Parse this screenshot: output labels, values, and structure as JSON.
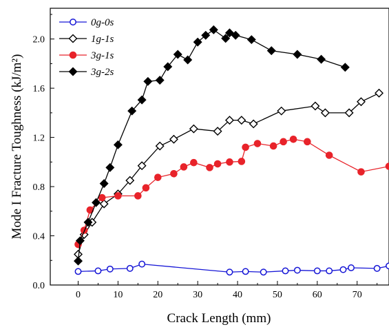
{
  "chart_data": {
    "type": "line",
    "xlabel": "Crack Length (mm)",
    "ylabel": "Mode I Fracture Toughness (kJ/m²)",
    "xlim": [
      -7,
      78
    ],
    "ylim": [
      0,
      2.25
    ],
    "xticks": [
      0,
      10,
      20,
      30,
      40,
      50,
      60,
      70
    ],
    "yticks": [
      0.0,
      0.4,
      0.8,
      1.2,
      1.6,
      2.0
    ],
    "ytick_labels": [
      "0.0",
      "0.4",
      "0.8",
      "1.2",
      "1.6",
      "2.0"
    ],
    "grid": false,
    "legend_position": "top-left",
    "series": [
      {
        "name": "0g-0s",
        "color": "#1515d6",
        "marker": "circle-open",
        "points": [
          [
            0,
            0.11
          ],
          [
            5,
            0.115
          ],
          [
            8,
            0.13
          ],
          [
            13,
            0.135
          ],
          [
            16,
            0.17
          ],
          [
            38,
            0.105
          ],
          [
            42,
            0.11
          ],
          [
            46.5,
            0.105
          ],
          [
            52,
            0.115
          ],
          [
            55,
            0.12
          ],
          [
            60,
            0.115
          ],
          [
            63,
            0.115
          ],
          [
            66.5,
            0.125
          ],
          [
            68.5,
            0.14
          ],
          [
            75,
            0.135
          ],
          [
            78,
            0.155
          ]
        ]
      },
      {
        "name": "1g-1s",
        "color": "#000000",
        "marker": "diamond-open",
        "points": [
          [
            0,
            0.25
          ],
          [
            1.5,
            0.41
          ],
          [
            3.5,
            0.51
          ],
          [
            6.5,
            0.66
          ],
          [
            10,
            0.74
          ],
          [
            13,
            0.85
          ],
          [
            16,
            0.97
          ],
          [
            20.5,
            1.13
          ],
          [
            24,
            1.185
          ],
          [
            29,
            1.27
          ],
          [
            35,
            1.25
          ],
          [
            38,
            1.34
          ],
          [
            41,
            1.34
          ],
          [
            44,
            1.31
          ],
          [
            51,
            1.415
          ],
          [
            59.5,
            1.455
          ],
          [
            62,
            1.4
          ],
          [
            68,
            1.4
          ],
          [
            71,
            1.49
          ],
          [
            75.5,
            1.56
          ]
        ]
      },
      {
        "name": "3g-1s",
        "color": "#e8232a",
        "marker": "circle-filled",
        "points": [
          [
            0,
            0.33
          ],
          [
            1.5,
            0.445
          ],
          [
            3,
            0.61
          ],
          [
            6,
            0.71
          ],
          [
            10,
            0.725
          ],
          [
            15,
            0.725
          ],
          [
            17,
            0.79
          ],
          [
            20,
            0.875
          ],
          [
            24,
            0.905
          ],
          [
            26.5,
            0.96
          ],
          [
            29,
            0.995
          ],
          [
            33,
            0.955
          ],
          [
            35,
            0.985
          ],
          [
            38,
            1.0
          ],
          [
            41,
            1.005
          ],
          [
            42,
            1.12
          ],
          [
            45,
            1.15
          ],
          [
            49,
            1.13
          ],
          [
            51.5,
            1.165
          ],
          [
            54,
            1.185
          ],
          [
            57.5,
            1.165
          ],
          [
            63,
            1.055
          ],
          [
            71,
            0.92
          ],
          [
            78,
            0.965
          ]
        ]
      },
      {
        "name": "3g-2s",
        "color": "#000000",
        "marker": "diamond-filled",
        "points": [
          [
            0,
            0.195
          ],
          [
            0.5,
            0.36
          ],
          [
            2.5,
            0.51
          ],
          [
            4.5,
            0.67
          ],
          [
            6.5,
            0.825
          ],
          [
            8,
            0.955
          ],
          [
            10,
            1.14
          ],
          [
            13.5,
            1.415
          ],
          [
            16,
            1.505
          ],
          [
            17.5,
            1.655
          ],
          [
            20.5,
            1.665
          ],
          [
            22.5,
            1.775
          ],
          [
            25,
            1.875
          ],
          [
            27.5,
            1.83
          ],
          [
            30,
            1.975
          ],
          [
            32,
            2.03
          ],
          [
            34,
            2.075
          ],
          [
            37,
            2.005
          ],
          [
            38,
            2.05
          ],
          [
            39.5,
            2.03
          ],
          [
            43.5,
            1.995
          ],
          [
            48.5,
            1.905
          ],
          [
            55,
            1.875
          ],
          [
            61,
            1.835
          ],
          [
            67,
            1.77
          ]
        ]
      }
    ]
  }
}
